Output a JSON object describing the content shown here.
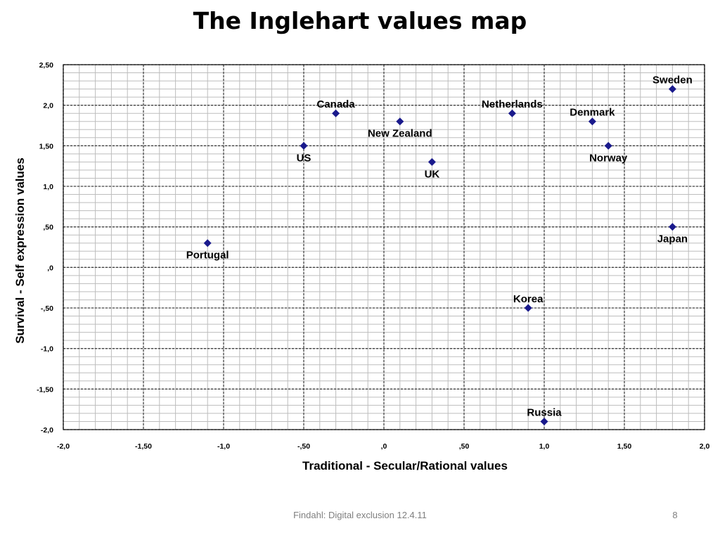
{
  "slide": {
    "title": "The Inglehart values map",
    "footer": "Findahl: Digital exclusion 12.4.11",
    "page_number": "8"
  },
  "chart_data": {
    "type": "scatter",
    "xlabel": "Traditional  -  Secular/Rational values",
    "ylabel": "Survival - Self expression values",
    "xlim": [
      -2.0,
      2.0
    ],
    "ylim": [
      -2.0,
      2.5
    ],
    "grid": true,
    "marker_color": "#1a1a8c",
    "x_ticks": [
      {
        "value": -2.0,
        "label": "-2,0"
      },
      {
        "value": -1.5,
        "label": "-1,50"
      },
      {
        "value": -1.0,
        "label": "-1,0"
      },
      {
        "value": -0.5,
        "label": "-,50"
      },
      {
        "value": 0.0,
        "label": ",0"
      },
      {
        "value": 0.5,
        "label": ",50"
      },
      {
        "value": 1.0,
        "label": "1,0"
      },
      {
        "value": 1.5,
        "label": "1,50"
      },
      {
        "value": 2.0,
        "label": "2,0"
      }
    ],
    "y_ticks": [
      {
        "value": 2.5,
        "label": "2,50"
      },
      {
        "value": 2.0,
        "label": "2,0"
      },
      {
        "value": 1.5,
        "label": "1,50"
      },
      {
        "value": 1.0,
        "label": "1,0"
      },
      {
        "value": 0.5,
        "label": ",50"
      },
      {
        "value": 0.0,
        "label": ",0"
      },
      {
        "value": -0.5,
        "label": "-,50"
      },
      {
        "value": -1.0,
        "label": "-1,0"
      },
      {
        "value": -1.5,
        "label": "-1,50"
      },
      {
        "value": -2.0,
        "label": "-2,0"
      }
    ],
    "points": [
      {
        "label": "Sweden",
        "x": 1.8,
        "y": 2.2,
        "label_pos": "above"
      },
      {
        "label": "Canada",
        "x": -0.3,
        "y": 1.9,
        "label_pos": "above"
      },
      {
        "label": "Netherlands",
        "x": 0.8,
        "y": 1.9,
        "label_pos": "above"
      },
      {
        "label": "Denmark",
        "x": 1.3,
        "y": 1.8,
        "label_pos": "above"
      },
      {
        "label": "New Zealand",
        "x": 0.1,
        "y": 1.8,
        "label_pos": "below"
      },
      {
        "label": "US",
        "x": -0.5,
        "y": 1.5,
        "label_pos": "below"
      },
      {
        "label": "Norway",
        "x": 1.4,
        "y": 1.5,
        "label_pos": "below"
      },
      {
        "label": "UK",
        "x": 0.3,
        "y": 1.3,
        "label_pos": "below"
      },
      {
        "label": "Japan",
        "x": 1.8,
        "y": 0.5,
        "label_pos": "below"
      },
      {
        "label": "Portugal",
        "x": -1.1,
        "y": 0.3,
        "label_pos": "below"
      },
      {
        "label": "Korea",
        "x": 0.9,
        "y": -0.5,
        "label_pos": "above"
      },
      {
        "label": "Russia",
        "x": 1.0,
        "y": -1.9,
        "label_pos": "above"
      }
    ]
  }
}
